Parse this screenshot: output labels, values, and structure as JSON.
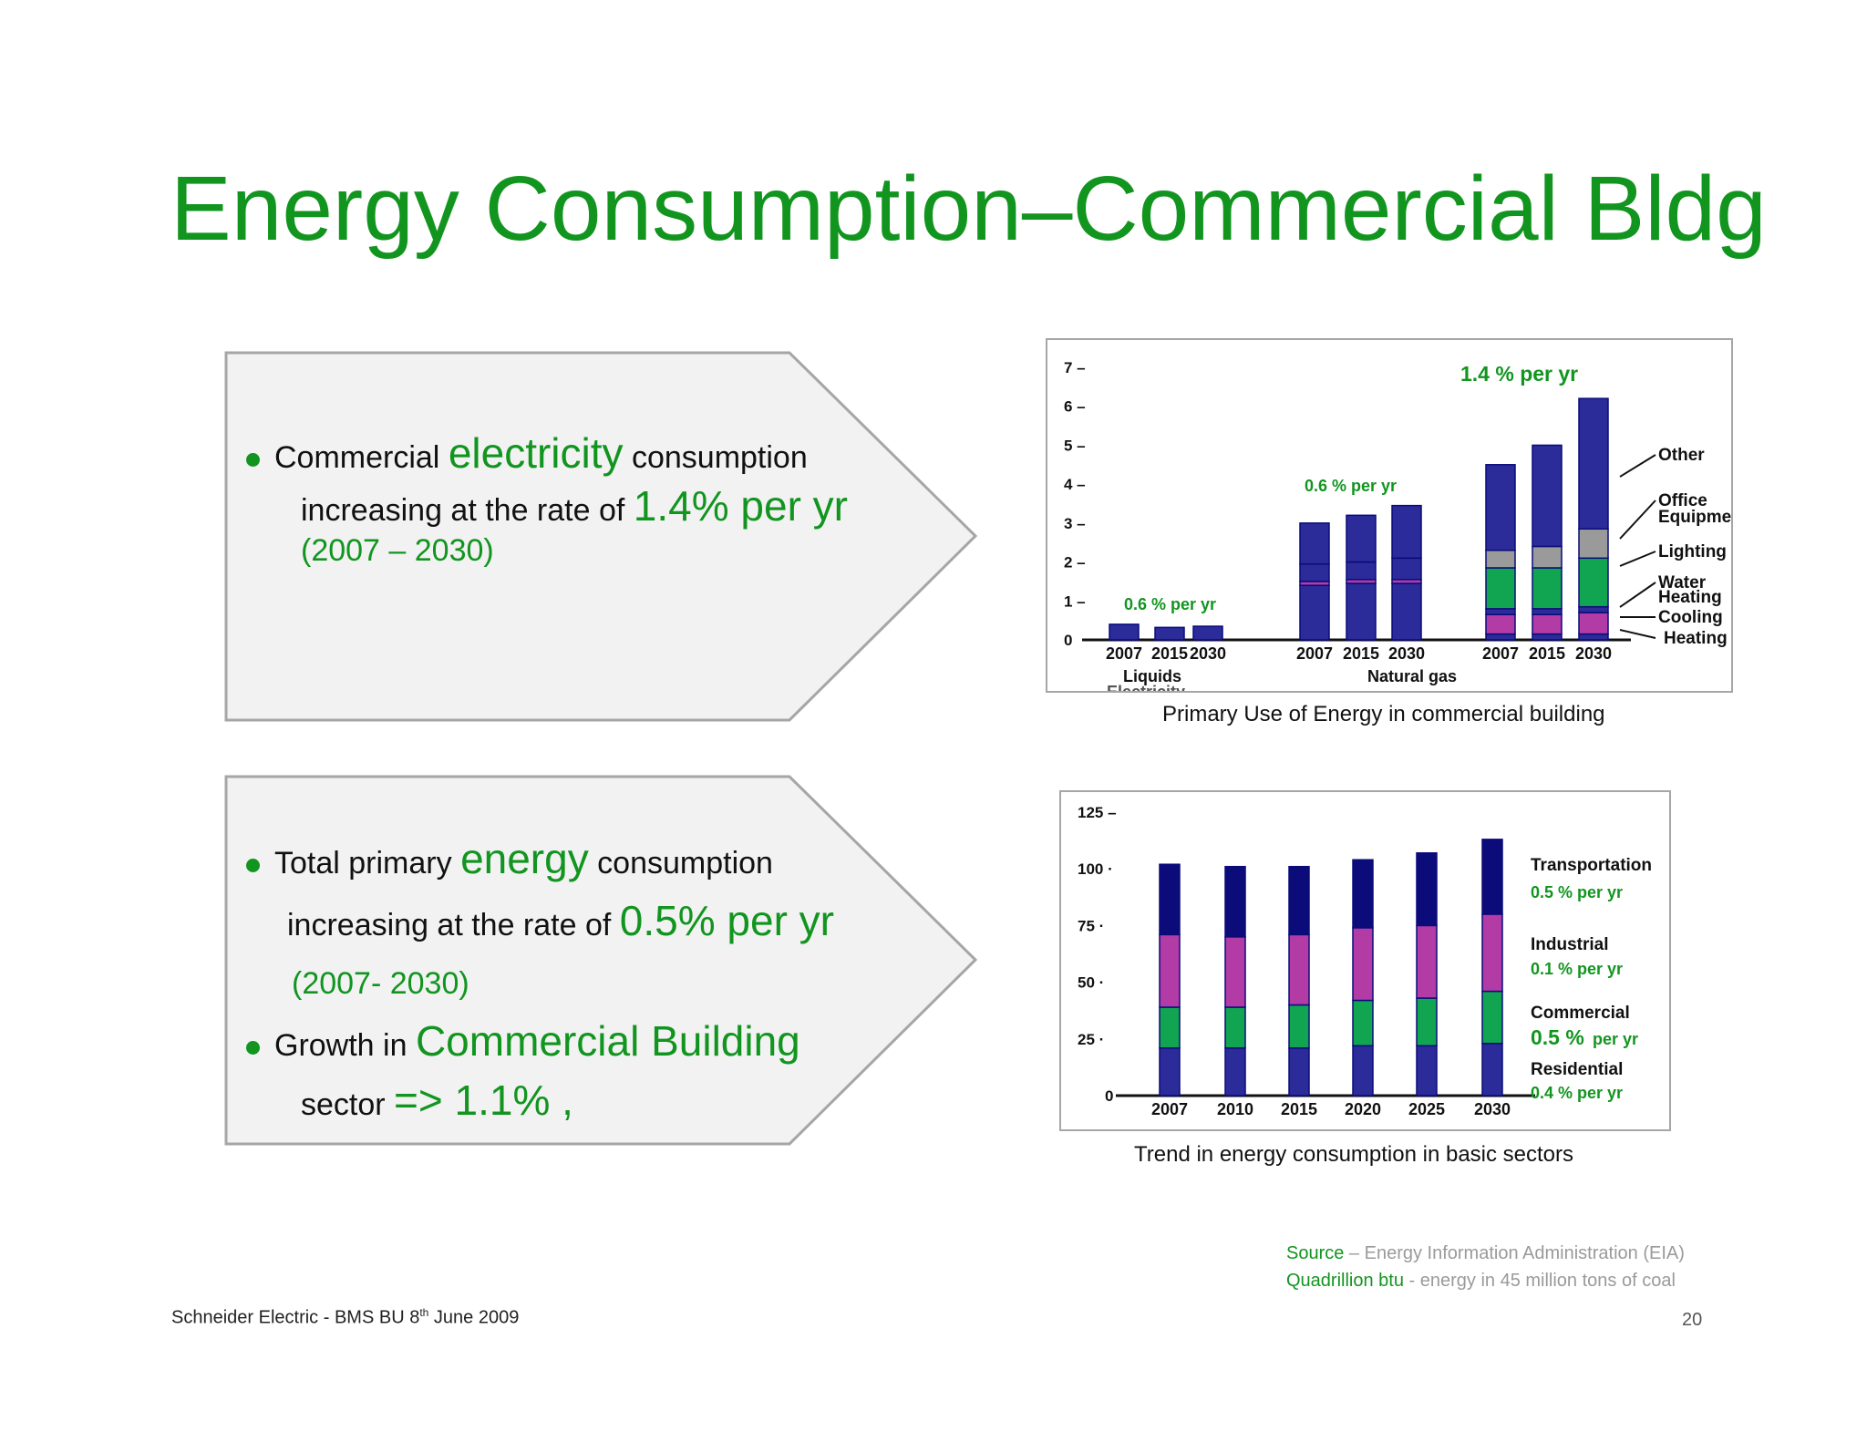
{
  "title": "Energy Consumption–Commercial Bldg",
  "box1": {
    "l1a": "Commercial ",
    "l1b": "electricity",
    "l1c": " consumption",
    "l2a": "increasing at the rate of ",
    "l2b": "1.4% per yr",
    "l3": "(2007 – 2030)"
  },
  "box2": {
    "l1a": "Total primary ",
    "l1b": "energy",
    "l1c": " consumption",
    "l2a": "increasing at  the rate of ",
    "l2b": "0.5% per yr",
    "l3": "(2007- 2030)",
    "l4a": "Growth in ",
    "l4b": "Commercial Building",
    "l5a": "sector ",
    "l5b": "=> 1.1% ,"
  },
  "chart1_caption": "Primary Use of Energy in commercial building",
  "chart2_caption": "Trend in energy consumption in basic sectors",
  "footer": {
    "source_label": "Source",
    "source_text": " – Energy Information Administration (EIA)",
    "unit_label": "Quadrillion btu",
    "unit_text": " - energy in 45 million tons of coal",
    "left": "Schneider Electric - BMS BU 8",
    "left_sup": "th",
    "left_tail": " June 2009",
    "page": "20"
  },
  "colors": {
    "title_green": "#12951f",
    "blue": "#2b2c9a",
    "navy": "#0b0b7a",
    "magenta": "#b23ba6",
    "green": "#11a552",
    "gray": "#9a9a9a"
  },
  "chart_data": [
    {
      "type": "bar",
      "ylim": [
        0,
        7
      ],
      "yticks": [
        "0",
        "1 –",
        "2 –",
        "3 –",
        "4 –",
        "5 –",
        "6 –",
        "7 –"
      ],
      "groups": [
        {
          "name": "Liquids",
          "years": [
            "2007",
            "2015",
            "2030"
          ],
          "growth": "0.6 % per yr",
          "stacks": [
            [
              {
                "s": "Heating",
                "v": 0.4
              }
            ],
            [
              {
                "s": "Heating",
                "v": 0.32
              }
            ],
            [
              {
                "s": "Heating",
                "v": 0.35
              }
            ]
          ]
        },
        {
          "name": "Natural gas",
          "years": [
            "2007",
            "2015",
            "2030"
          ],
          "growth": "0.6 % per yr",
          "stacks": [
            [
              {
                "s": "Heating",
                "v": 1.4
              },
              {
                "s": "Cooling",
                "v": 0.1
              },
              {
                "s": "Water Heating",
                "v": 0.45
              },
              {
                "s": "Other",
                "v": 1.05
              }
            ],
            [
              {
                "s": "Heating",
                "v": 1.45
              },
              {
                "s": "Cooling",
                "v": 0.1
              },
              {
                "s": "Water Heating",
                "v": 0.45
              },
              {
                "s": "Other",
                "v": 1.2
              }
            ],
            [
              {
                "s": "Heating",
                "v": 1.45
              },
              {
                "s": "Cooling",
                "v": 0.1
              },
              {
                "s": "Water Heating",
                "v": 0.55
              },
              {
                "s": "Other",
                "v": 1.35
              }
            ]
          ]
        },
        {
          "name": "Electricity",
          "years": [
            "2007",
            "2015",
            "2030"
          ],
          "growth": "1.4 % per yr",
          "stacks": [
            [
              {
                "s": "Heating",
                "v": 0.15
              },
              {
                "s": "Cooling",
                "v": 0.5
              },
              {
                "s": "Water Heating",
                "v": 0.15
              },
              {
                "s": "Lighting",
                "v": 1.05
              },
              {
                "s": "Office Equipment",
                "v": 0.45
              },
              {
                "s": "Other",
                "v": 2.2
              }
            ],
            [
              {
                "s": "Heating",
                "v": 0.15
              },
              {
                "s": "Cooling",
                "v": 0.5
              },
              {
                "s": "Water Heating",
                "v": 0.15
              },
              {
                "s": "Lighting",
                "v": 1.05
              },
              {
                "s": "Office Equipment",
                "v": 0.55
              },
              {
                "s": "Other",
                "v": 2.6
              }
            ],
            [
              {
                "s": "Heating",
                "v": 0.15
              },
              {
                "s": "Cooling",
                "v": 0.55
              },
              {
                "s": "Water Heating",
                "v": 0.15
              },
              {
                "s": "Lighting",
                "v": 1.25
              },
              {
                "s": "Office Equipment",
                "v": 0.75
              },
              {
                "s": "Other",
                "v": 3.35
              }
            ]
          ]
        }
      ],
      "legend": [
        "Other",
        "Office Equipment",
        "Lighting",
        "Water Heating",
        "Cooling",
        "Heating"
      ]
    },
    {
      "type": "bar",
      "ylim": [
        0,
        125
      ],
      "yticks": [
        "0",
        "25 ·",
        "50 ·",
        "75 ·",
        "100 ·",
        "125 –"
      ],
      "categories": [
        "2007",
        "2010",
        "2015",
        "2020",
        "2025",
        "2030"
      ],
      "series": [
        {
          "name": "Residential",
          "growth": "0.4 % per yr",
          "values": [
            21,
            21,
            21,
            22,
            22,
            23
          ]
        },
        {
          "name": "Commercial",
          "growth_big": "0.5 %",
          "growth": " per yr",
          "values": [
            18,
            18,
            19,
            20,
            21,
            23
          ]
        },
        {
          "name": "Industrial",
          "growth": "0.1 % per yr",
          "values": [
            32,
            31,
            31,
            32,
            32,
            34
          ]
        },
        {
          "name": "Transportation",
          "growth": "0.5 % per yr",
          "values": [
            31,
            31,
            30,
            30,
            32,
            33
          ]
        }
      ]
    }
  ]
}
